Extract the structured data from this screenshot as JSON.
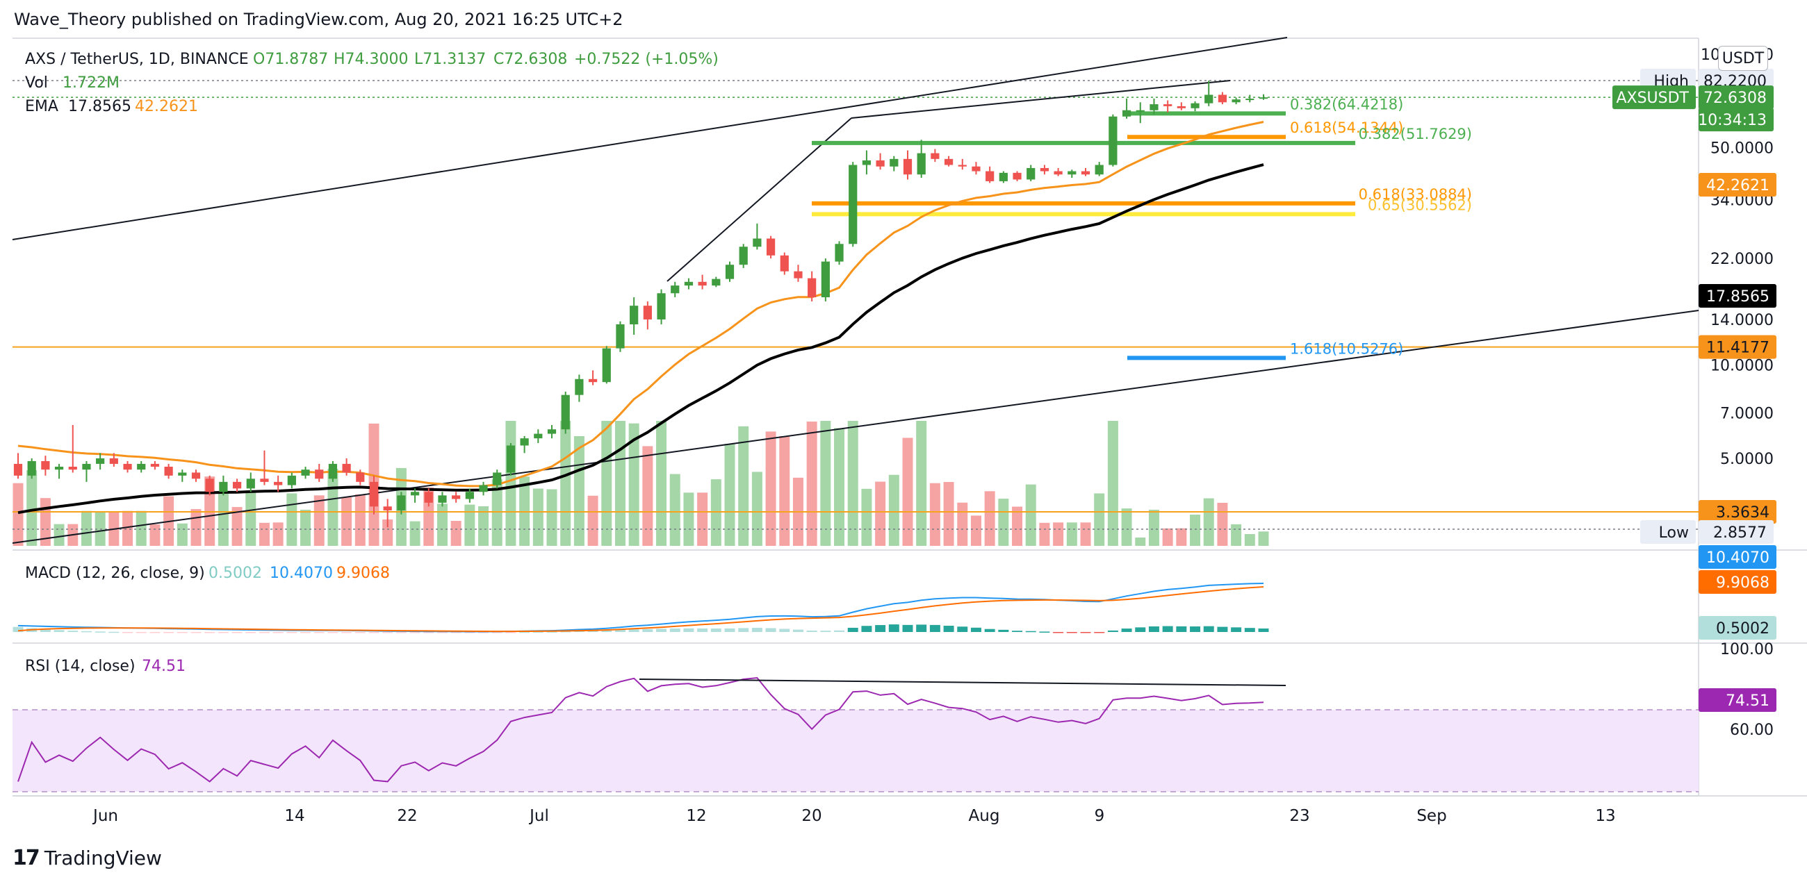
{
  "header": {
    "title": "Wave_Theory published on TradingView.com, Aug 20, 2021 16:25 UTC+2"
  },
  "footer": {
    "brand": "TradingView",
    "logo_icon": "tradingview-logo-icon"
  },
  "legend": {
    "symbol": "AXS / TetherUS, 1D, BINANCE",
    "open": "O71.8787",
    "high": "H74.3000",
    "low": "L71.3137",
    "close": "C72.6308",
    "change": "+0.7522 (+1.05%)",
    "vol_label": "Vol",
    "vol_value": "1.722M",
    "ema_label": "EMA",
    "ema1": "17.8565",
    "ema2": "42.2621"
  },
  "unit": "USDT",
  "colors": {
    "up": "#26a69a",
    "candle_up": "#3f9d3f",
    "candle_down": "#ef5350",
    "vol_up": "#a5d6a7",
    "vol_down": "#f5a3a3",
    "ema_fast": "#f7931a",
    "ema_slow": "#000000",
    "macd": "#2196f3",
    "signal": "#ff6d00",
    "rsi": "#9c27b0",
    "rsi_band": "#f3e5fb",
    "fib_green": "#4caf50",
    "fib_orange": "#ff9800",
    "fib_yellow": "#ffeb3b",
    "fib_blue": "#2196f3"
  },
  "price_axis": {
    "ticks": [
      "100.0000",
      "50.0000",
      "34.0000",
      "22.0000",
      "14.0000",
      "10.0000",
      "7.0000",
      "5.0000"
    ],
    "high_label": "High",
    "high_value": "82.2200",
    "low_label": "Low",
    "low_value": "2.8577",
    "last_symbol": "AXSUSDT",
    "last_price": "72.6308",
    "countdown": "10:34:13",
    "ema_fast_tag": "42.2621",
    "ema_slow_tag": "17.8565",
    "level_tags": [
      "11.4177",
      "3.3634"
    ]
  },
  "macd": {
    "label": "MACD (12, 26, close, 9)",
    "hist": "0.5002",
    "macd": "10.4070",
    "signal": "9.9068",
    "tags": [
      "10.4070",
      "9.9068",
      "0.5002"
    ]
  },
  "rsi": {
    "label": "RSI (14, close)",
    "value": "74.51",
    "ticks": [
      "100.00",
      "60.00"
    ],
    "tag": "74.51"
  },
  "time_axis": [
    "Jun",
    "14",
    "22",
    "Jul",
    "12",
    "20",
    "Aug",
    "9",
    "23",
    "Sep",
    "13"
  ],
  "chart_data": {
    "type": "candlestick",
    "symbol": "AXS / TetherUS",
    "interval": "1D",
    "scale": "log",
    "candles_approx": [
      {
        "o": 4.8,
        "h": 5.2,
        "l": 4.3,
        "c": 4.4
      },
      {
        "o": 4.4,
        "h": 5.0,
        "l": 4.3,
        "c": 4.9
      },
      {
        "o": 4.9,
        "h": 5.1,
        "l": 4.4,
        "c": 4.6
      },
      {
        "o": 4.6,
        "h": 4.8,
        "l": 4.3,
        "c": 4.7
      },
      {
        "o": 4.7,
        "h": 6.4,
        "l": 4.5,
        "c": 4.6
      },
      {
        "o": 4.6,
        "h": 4.9,
        "l": 4.2,
        "c": 4.8
      },
      {
        "o": 4.8,
        "h": 5.2,
        "l": 4.6,
        "c": 5.0
      },
      {
        "o": 5.0,
        "h": 5.2,
        "l": 4.7,
        "c": 4.8
      },
      {
        "o": 4.8,
        "h": 4.9,
        "l": 4.5,
        "c": 4.6
      },
      {
        "o": 4.6,
        "h": 4.9,
        "l": 4.5,
        "c": 4.8
      },
      {
        "o": 4.8,
        "h": 4.9,
        "l": 4.6,
        "c": 4.7
      },
      {
        "o": 4.7,
        "h": 4.8,
        "l": 4.3,
        "c": 4.4
      },
      {
        "o": 4.4,
        "h": 4.6,
        "l": 4.2,
        "c": 4.5
      },
      {
        "o": 4.5,
        "h": 4.6,
        "l": 4.2,
        "c": 4.3
      },
      {
        "o": 4.3,
        "h": 4.4,
        "l": 3.8,
        "c": 3.9
      },
      {
        "o": 3.9,
        "h": 4.4,
        "l": 3.8,
        "c": 4.2
      },
      {
        "o": 4.2,
        "h": 4.3,
        "l": 3.9,
        "c": 4.0
      },
      {
        "o": 4.0,
        "h": 4.5,
        "l": 3.9,
        "c": 4.3
      },
      {
        "o": 4.3,
        "h": 5.3,
        "l": 4.1,
        "c": 4.2
      },
      {
        "o": 4.2,
        "h": 4.4,
        "l": 3.9,
        "c": 4.1
      },
      {
        "o": 4.1,
        "h": 4.5,
        "l": 4.0,
        "c": 4.4
      },
      {
        "o": 4.4,
        "h": 4.7,
        "l": 4.3,
        "c": 4.6
      },
      {
        "o": 4.6,
        "h": 4.8,
        "l": 4.2,
        "c": 4.3
      },
      {
        "o": 4.3,
        "h": 4.9,
        "l": 4.2,
        "c": 4.8
      },
      {
        "o": 4.8,
        "h": 5.0,
        "l": 4.4,
        "c": 4.5
      },
      {
        "o": 4.5,
        "h": 4.6,
        "l": 4.1,
        "c": 4.2
      },
      {
        "o": 4.2,
        "h": 4.4,
        "l": 3.3,
        "c": 3.5
      },
      {
        "o": 3.5,
        "h": 3.7,
        "l": 3.0,
        "c": 3.4
      },
      {
        "o": 3.4,
        "h": 3.9,
        "l": 3.3,
        "c": 3.8
      },
      {
        "o": 3.8,
        "h": 4.0,
        "l": 3.6,
        "c": 3.9
      },
      {
        "o": 3.9,
        "h": 4.0,
        "l": 3.5,
        "c": 3.6
      },
      {
        "o": 3.6,
        "h": 3.9,
        "l": 3.5,
        "c": 3.8
      },
      {
        "o": 3.8,
        "h": 3.9,
        "l": 3.6,
        "c": 3.7
      },
      {
        "o": 3.7,
        "h": 4.0,
        "l": 3.6,
        "c": 3.9
      },
      {
        "o": 3.9,
        "h": 4.2,
        "l": 3.8,
        "c": 4.1
      },
      {
        "o": 4.1,
        "h": 4.6,
        "l": 4.0,
        "c": 4.5
      },
      {
        "o": 4.5,
        "h": 5.6,
        "l": 4.4,
        "c": 5.5
      },
      {
        "o": 5.5,
        "h": 5.9,
        "l": 5.2,
        "c": 5.8
      },
      {
        "o": 5.8,
        "h": 6.2,
        "l": 5.6,
        "c": 6.0
      },
      {
        "o": 6.0,
        "h": 6.4,
        "l": 5.8,
        "c": 6.2
      },
      {
        "o": 6.2,
        "h": 8.2,
        "l": 6.0,
        "c": 8.0
      },
      {
        "o": 8.0,
        "h": 9.3,
        "l": 7.6,
        "c": 9.0
      },
      {
        "o": 9.0,
        "h": 9.6,
        "l": 8.6,
        "c": 8.8
      },
      {
        "o": 8.8,
        "h": 11.5,
        "l": 8.7,
        "c": 11.3
      },
      {
        "o": 11.3,
        "h": 13.8,
        "l": 11.0,
        "c": 13.5
      },
      {
        "o": 13.5,
        "h": 16.5,
        "l": 12.5,
        "c": 15.5
      },
      {
        "o": 15.5,
        "h": 16.0,
        "l": 13.0,
        "c": 14.0
      },
      {
        "o": 14.0,
        "h": 17.5,
        "l": 13.5,
        "c": 17.0
      },
      {
        "o": 17.0,
        "h": 18.5,
        "l": 16.5,
        "c": 18.0
      },
      {
        "o": 18.0,
        "h": 19.0,
        "l": 17.5,
        "c": 18.5
      },
      {
        "o": 18.5,
        "h": 19.5,
        "l": 17.5,
        "c": 18.0
      },
      {
        "o": 18.0,
        "h": 19.2,
        "l": 17.8,
        "c": 18.9
      },
      {
        "o": 18.9,
        "h": 21.5,
        "l": 18.5,
        "c": 21.0
      },
      {
        "o": 21.0,
        "h": 24.5,
        "l": 20.5,
        "c": 24.0
      },
      {
        "o": 24.0,
        "h": 28.5,
        "l": 23.5,
        "c": 25.5
      },
      {
        "o": 25.5,
        "h": 26.0,
        "l": 22.0,
        "c": 22.5
      },
      {
        "o": 22.5,
        "h": 23.0,
        "l": 19.5,
        "c": 20.0
      },
      {
        "o": 20.0,
        "h": 21.0,
        "l": 18.5,
        "c": 19.0
      },
      {
        "o": 19.0,
        "h": 20.0,
        "l": 16.0,
        "c": 16.5
      },
      {
        "o": 16.5,
        "h": 22.0,
        "l": 16.0,
        "c": 21.5
      },
      {
        "o": 21.5,
        "h": 25.0,
        "l": 21.0,
        "c": 24.5
      },
      {
        "o": 24.5,
        "h": 45.0,
        "l": 24.0,
        "c": 44.0
      },
      {
        "o": 44.0,
        "h": 49.0,
        "l": 41.0,
        "c": 45.5
      },
      {
        "o": 45.5,
        "h": 48.0,
        "l": 42.5,
        "c": 43.5
      },
      {
        "o": 43.5,
        "h": 47.0,
        "l": 42.0,
        "c": 46.0
      },
      {
        "o": 46.0,
        "h": 49.0,
        "l": 39.5,
        "c": 41.0
      },
      {
        "o": 41.0,
        "h": 53.0,
        "l": 40.0,
        "c": 48.0
      },
      {
        "o": 48.0,
        "h": 49.5,
        "l": 45.0,
        "c": 46.0
      },
      {
        "o": 46.0,
        "h": 47.0,
        "l": 43.5,
        "c": 44.0
      },
      {
        "o": 44.0,
        "h": 46.0,
        "l": 42.5,
        "c": 43.5
      },
      {
        "o": 43.5,
        "h": 45.0,
        "l": 41.0,
        "c": 42.0
      },
      {
        "o": 42.0,
        "h": 43.5,
        "l": 38.5,
        "c": 39.0
      },
      {
        "o": 39.0,
        "h": 42.0,
        "l": 38.5,
        "c": 41.5
      },
      {
        "o": 41.5,
        "h": 42.0,
        "l": 39.0,
        "c": 39.5
      },
      {
        "o": 39.5,
        "h": 44.0,
        "l": 39.0,
        "c": 43.0
      },
      {
        "o": 43.0,
        "h": 44.0,
        "l": 41.0,
        "c": 42.0
      },
      {
        "o": 42.0,
        "h": 43.0,
        "l": 40.5,
        "c": 41.0
      },
      {
        "o": 41.0,
        "h": 42.5,
        "l": 40.0,
        "c": 42.0
      },
      {
        "o": 42.0,
        "h": 43.0,
        "l": 40.5,
        "c": 41.0
      },
      {
        "o": 41.0,
        "h": 45.0,
        "l": 40.5,
        "c": 44.0
      },
      {
        "o": 44.0,
        "h": 64.0,
        "l": 43.5,
        "c": 63.0
      },
      {
        "o": 63.0,
        "h": 72.0,
        "l": 62.0,
        "c": 66.0
      },
      {
        "o": 66.0,
        "h": 70.0,
        "l": 60.0,
        "c": 66.0
      },
      {
        "o": 66.0,
        "h": 72.0,
        "l": 64.0,
        "c": 69.0
      },
      {
        "o": 69.0,
        "h": 71.0,
        "l": 65.0,
        "c": 68.0
      },
      {
        "o": 68.0,
        "h": 70.0,
        "l": 66.0,
        "c": 67.0
      },
      {
        "o": 67.0,
        "h": 70.5,
        "l": 65.5,
        "c": 69.5
      },
      {
        "o": 69.5,
        "h": 82.2,
        "l": 68.0,
        "c": 74.0
      },
      {
        "o": 74.0,
        "h": 75.5,
        "l": 69.0,
        "c": 70.0
      },
      {
        "o": 70.0,
        "h": 72.5,
        "l": 69.0,
        "c": 71.5
      },
      {
        "o": 71.5,
        "h": 74.0,
        "l": 70.0,
        "c": 71.9
      },
      {
        "o": 71.9,
        "h": 74.3,
        "l": 71.3,
        "c": 72.6
      }
    ],
    "price_lines": [
      {
        "label": "0.382(64.4218)",
        "value": 64.4218
      },
      {
        "label": "0.618(54.1344)",
        "value": 54.1344
      },
      {
        "label": "0.382(51.7629)",
        "value": 51.7629
      },
      {
        "label": "0.618(33.0884)",
        "value": 33.0884
      },
      {
        "label": "0.65(30.5562)",
        "value": 30.5562
      },
      {
        "label": "1.618(10.5276)",
        "value": 10.5276
      }
    ],
    "horizontal_levels": [
      11.4177,
      3.3634
    ],
    "high": 82.22,
    "low": 2.8577,
    "last": 72.6308
  }
}
